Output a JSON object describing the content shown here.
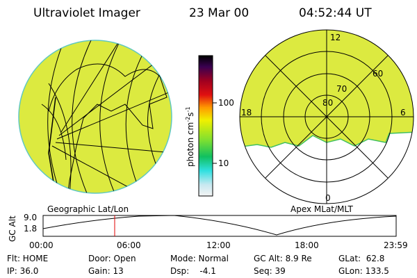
{
  "header": {
    "instrument": "Ultraviolet Imager",
    "date": "23 Mar 00",
    "time": "04:52:44 UT"
  },
  "colorbar": {
    "label": [
      "photon cm",
      "-2",
      "s",
      "-1"
    ],
    "ticks": [
      "100",
      "10"
    ]
  },
  "polar": {
    "top": "12",
    "left": "18",
    "right": "6",
    "bottom": "0",
    "rings": [
      "80",
      "70",
      "60"
    ]
  },
  "map_labels": {
    "left": "Geographic Lat/Lon",
    "right": "Apex MLat/MLT"
  },
  "altitude_plot": {
    "label": "GC Alt",
    "yticks": [
      "9.0",
      "1.8"
    ],
    "xticks": [
      "00:00",
      "06:00",
      "12:00",
      "18:00",
      "23:59"
    ]
  },
  "info": {
    "rows": [
      [
        "Flt: HOME",
        "Door: Open",
        "Mode: Normal",
        "GC Alt: 8.9 Re",
        "GLat:  62.8"
      ],
      [
        "IP: 36.0",
        "Gain: 13",
        "Dsp:    -4.1",
        "Seq: 39",
        "GLon: 133.5"
      ]
    ]
  }
}
